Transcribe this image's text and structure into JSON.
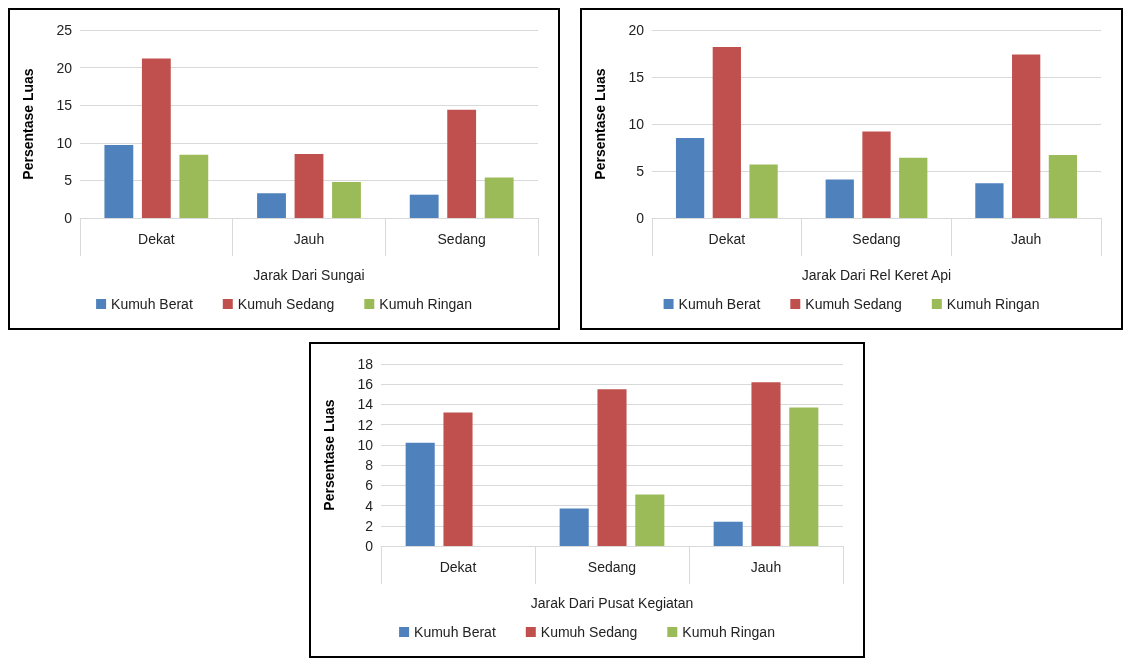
{
  "chart_data": [
    {
      "type": "bar",
      "xlabel": "Jarak Dari Sungai",
      "ylabel": "Persentase Luas",
      "categories": [
        "Dekat",
        "Jauh",
        "Sedang"
      ],
      "series": [
        {
          "name": "Kumuh Berat",
          "color": "#4f81bd",
          "values": [
            9.7,
            3.3,
            3.1
          ]
        },
        {
          "name": "Kumuh Sedang",
          "color": "#c0504d",
          "values": [
            21.2,
            8.5,
            14.4
          ]
        },
        {
          "name": "Kumuh Ringan",
          "color": "#9bbb59",
          "values": [
            8.4,
            4.8,
            5.4
          ]
        }
      ],
      "ylim": [
        0,
        25
      ],
      "yticks": [
        0,
        5,
        10,
        15,
        20,
        25
      ],
      "grid": "y",
      "legend": "bottom"
    },
    {
      "type": "bar",
      "xlabel": "Jarak Dari Rel Keret Api",
      "ylabel": "Persentase Luas",
      "categories": [
        "Dekat",
        "Sedang",
        "Jauh"
      ],
      "series": [
        {
          "name": "Kumuh Berat",
          "color": "#4f81bd",
          "values": [
            8.5,
            4.1,
            3.7
          ]
        },
        {
          "name": "Kumuh Sedang",
          "color": "#c0504d",
          "values": [
            18.2,
            9.2,
            17.4
          ]
        },
        {
          "name": "Kumuh Ringan",
          "color": "#9bbb59",
          "values": [
            5.7,
            6.4,
            6.7
          ]
        }
      ],
      "ylim": [
        0,
        20
      ],
      "yticks": [
        0,
        5,
        10,
        15,
        20
      ],
      "grid": "y",
      "legend": "bottom"
    },
    {
      "type": "bar",
      "xlabel": "Jarak Dari Pusat Kegiatan",
      "ylabel": "Persentase Luas",
      "categories": [
        "Dekat",
        "Sedang",
        "Jauh"
      ],
      "series": [
        {
          "name": "Kumuh Berat",
          "color": "#4f81bd",
          "values": [
            10.2,
            3.7,
            2.4
          ]
        },
        {
          "name": "Kumuh Sedang",
          "color": "#c0504d",
          "values": [
            13.2,
            15.5,
            16.2
          ]
        },
        {
          "name": "Kumuh Ringan",
          "color": "#9bbb59",
          "values": [
            null,
            5.1,
            13.7
          ]
        }
      ],
      "ylim": [
        0,
        18
      ],
      "yticks": [
        0,
        2,
        4,
        6,
        8,
        10,
        12,
        14,
        16,
        18
      ],
      "grid": "y",
      "legend": "bottom"
    }
  ]
}
